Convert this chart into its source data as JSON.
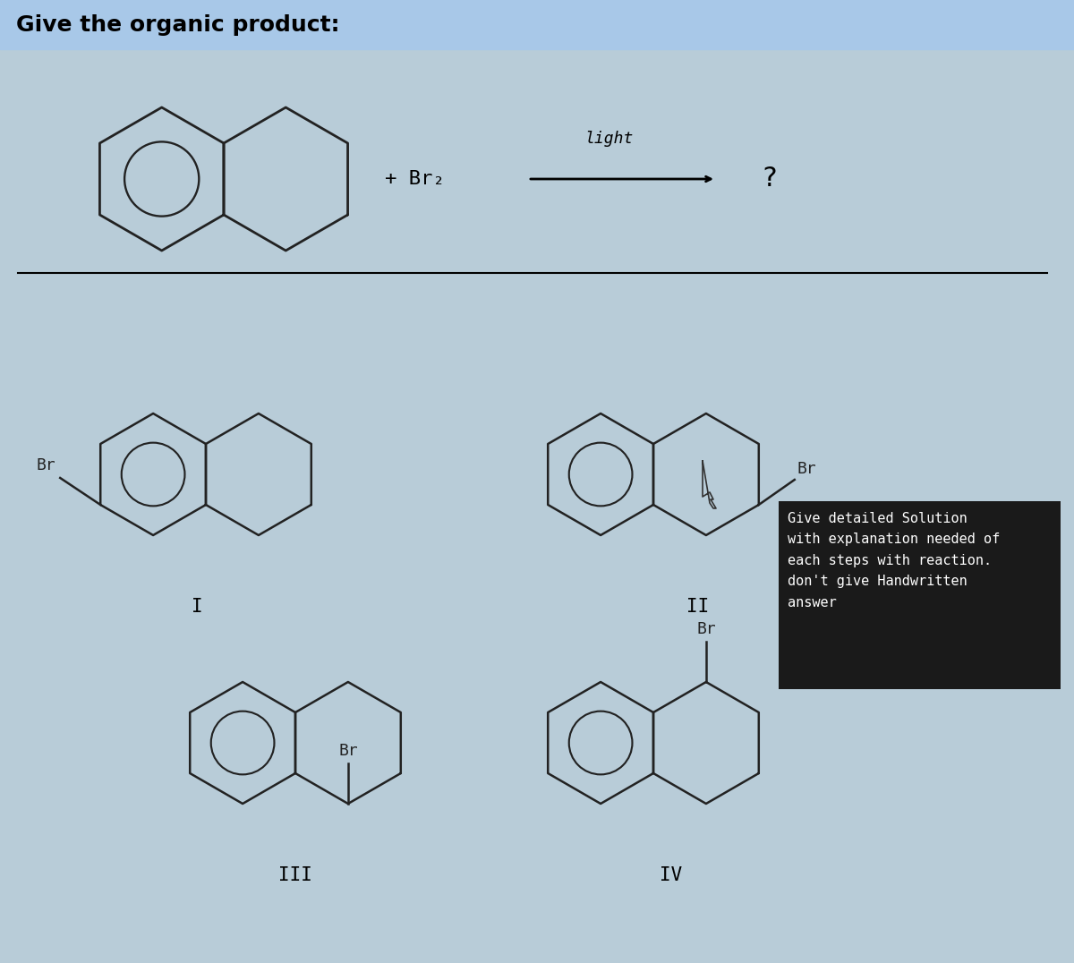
{
  "title": "Give the organic product:",
  "title_bg": "#a8c8e8",
  "bg_color": "#b8ccd8",
  "reaction_plus_br2": "+ Br₂",
  "light_text": "light",
  "question_mark": "?",
  "label_I": "I",
  "label_II": "II",
  "label_III": "III",
  "label_IV": "IV",
  "br_label": "Br",
  "black_box_text": "Give detailed Solution\nwith explanation needed of\neach steps with reaction.\ndon't give Handwritten\nanswer",
  "line_color": "#000000",
  "struct_color": "#222222",
  "box_bg": "#1a1a1a",
  "box_text_color": "#ffffff"
}
